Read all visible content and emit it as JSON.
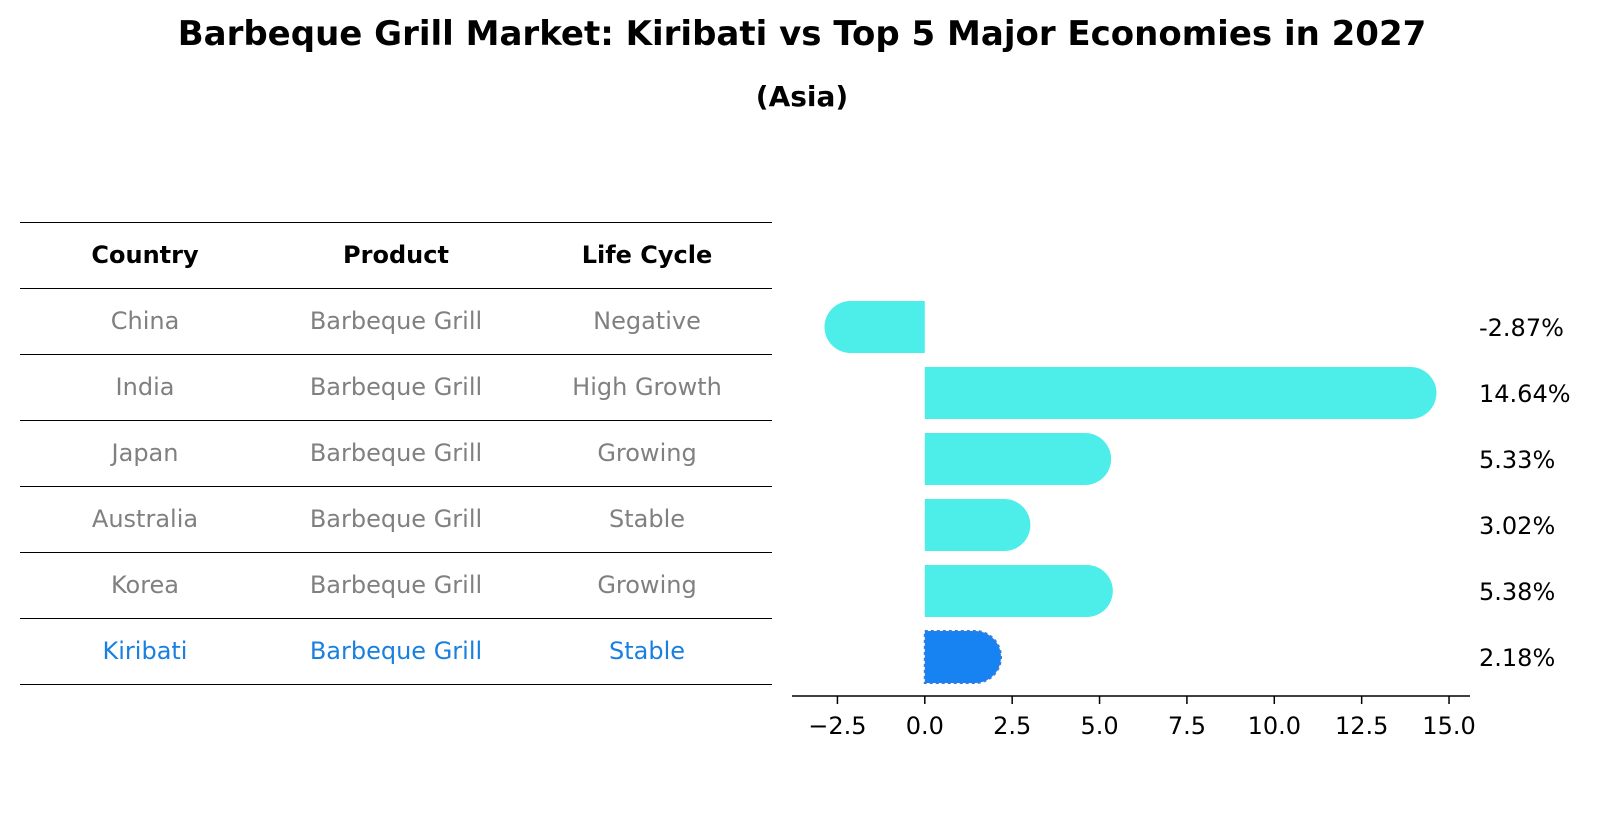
{
  "title": "Barbeque Grill Market: Kiribati vs Top 5 Major Economies in 2027",
  "subtitle": "(Asia)",
  "table": {
    "headers": [
      "Country",
      "Product",
      "Life Cycle"
    ],
    "rows": [
      {
        "country": "China",
        "product": "Barbeque Grill",
        "life_cycle": "Negative"
      },
      {
        "country": "India",
        "product": "Barbeque Grill",
        "life_cycle": "High Growth"
      },
      {
        "country": "Japan",
        "product": "Barbeque Grill",
        "life_cycle": "Growing"
      },
      {
        "country": "Australia",
        "product": "Barbeque Grill",
        "life_cycle": "Stable"
      },
      {
        "country": "Korea",
        "product": "Barbeque Grill",
        "life_cycle": "Growing"
      },
      {
        "country": "Kiribati",
        "product": "Barbeque Grill",
        "life_cycle": "Stable"
      }
    ]
  },
  "colors": {
    "bar": "#4deee9",
    "highlight_bar": "#1783f3",
    "highlight_text": "#1a80e0",
    "muted_text": "#808080"
  },
  "chart_data": {
    "type": "bar",
    "orientation": "horizontal",
    "categories": [
      "China",
      "India",
      "Japan",
      "Australia",
      "Korea",
      "Kiribati"
    ],
    "values": [
      -2.87,
      14.64,
      5.33,
      3.02,
      5.38,
      2.18
    ],
    "value_labels": [
      "-2.87%",
      "14.64%",
      "5.33%",
      "3.02%",
      "5.38%",
      "2.18%"
    ],
    "highlight": "Kiribati",
    "xlim": [
      -3.8,
      15.6
    ],
    "xticks": [
      -2.5,
      0.0,
      2.5,
      5.0,
      7.5,
      10.0,
      12.5,
      15.0
    ],
    "xtick_labels": [
      "−2.5",
      "0.0",
      "2.5",
      "5.0",
      "7.5",
      "10.0",
      "12.5",
      "15.0"
    ]
  }
}
